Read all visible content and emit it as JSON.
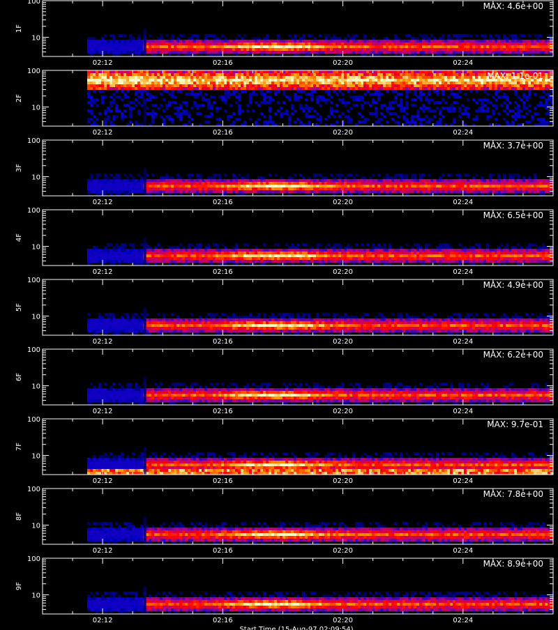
{
  "figure": {
    "footer_label": "Start Time (15-Aug-97 02:09:54)"
  },
  "chart_data": [
    {
      "type": "heatmap",
      "panel": "1F",
      "ylabel": "1F",
      "max_label": "MAX: 4.6e+00",
      "band_style": "normal",
      "peak_time": "02:18",
      "yscale": "log",
      "ylim": [
        3,
        100
      ],
      "yticks": [
        "10",
        "100"
      ],
      "xticks": [
        "02:12",
        "02:16",
        "02:20",
        "02:24"
      ],
      "xlim": [
        "02:10",
        "02:27"
      ]
    },
    {
      "type": "heatmap",
      "panel": "2F",
      "ylabel": "2F",
      "max_label": "MAX: 1.1e-01",
      "band_style": "high-noise",
      "peak_time": "02:13",
      "yscale": "log",
      "ylim": [
        3,
        100
      ],
      "yticks": [
        "10",
        "100"
      ],
      "xticks": [
        "02:12",
        "02:16",
        "02:20",
        "02:24"
      ],
      "xlim": [
        "02:10",
        "02:27"
      ]
    },
    {
      "type": "heatmap",
      "panel": "3F",
      "ylabel": "3F",
      "max_label": "MAX: 3.7e+00",
      "band_style": "normal",
      "peak_time": "02:18",
      "yscale": "log",
      "ylim": [
        3,
        100
      ],
      "yticks": [
        "10",
        "100"
      ],
      "xticks": [
        "02:12",
        "02:16",
        "02:20",
        "02:24"
      ],
      "xlim": [
        "02:10",
        "02:27"
      ]
    },
    {
      "type": "heatmap",
      "panel": "4F",
      "ylabel": "4F",
      "max_label": "MAX: 6.5e+00",
      "band_style": "normal",
      "peak_time": "02:18",
      "yscale": "log",
      "ylim": [
        3,
        100
      ],
      "yticks": [
        "10",
        "100"
      ],
      "xticks": [
        "02:12",
        "02:16",
        "02:20",
        "02:24"
      ],
      "xlim": [
        "02:10",
        "02:27"
      ]
    },
    {
      "type": "heatmap",
      "panel": "5F",
      "ylabel": "5F",
      "max_label": "MAX: 4.9e+00",
      "band_style": "normal",
      "peak_time": "02:18",
      "yscale": "log",
      "ylim": [
        3,
        100
      ],
      "yticks": [
        "10",
        "100"
      ],
      "xticks": [
        "02:12",
        "02:16",
        "02:20",
        "02:24"
      ],
      "xlim": [
        "02:10",
        "02:27"
      ]
    },
    {
      "type": "heatmap",
      "panel": "6F",
      "ylabel": "6F",
      "max_label": "MAX: 6.2e+00",
      "band_style": "normal",
      "peak_time": "02:18",
      "yscale": "log",
      "ylim": [
        3,
        100
      ],
      "yticks": [
        "10",
        "100"
      ],
      "xticks": [
        "02:12",
        "02:16",
        "02:20",
        "02:24"
      ],
      "xlim": [
        "02:10",
        "02:27"
      ]
    },
    {
      "type": "heatmap",
      "panel": "7F",
      "ylabel": "7F",
      "max_label": "MAX: 9.7e-01",
      "band_style": "with-bottom-strip",
      "peak_time": "02:18",
      "yscale": "log",
      "ylim": [
        3,
        100
      ],
      "yticks": [
        "10",
        "100"
      ],
      "xticks": [
        "02:12",
        "02:16",
        "02:20",
        "02:24"
      ],
      "xlim": [
        "02:10",
        "02:27"
      ]
    },
    {
      "type": "heatmap",
      "panel": "8F",
      "ylabel": "8F",
      "max_label": "MAX: 7.8e+00",
      "band_style": "normal",
      "peak_time": "02:18",
      "yscale": "log",
      "ylim": [
        3,
        100
      ],
      "yticks": [
        "10",
        "100"
      ],
      "xticks": [
        "02:12",
        "02:16",
        "02:20",
        "02:24"
      ],
      "xlim": [
        "02:10",
        "02:27"
      ]
    },
    {
      "type": "heatmap",
      "panel": "9F",
      "ylabel": "9F",
      "max_label": "MAX: 8.9e+00",
      "band_style": "normal",
      "peak_time": "02:18",
      "yscale": "log",
      "ylim": [
        3,
        100
      ],
      "yticks": [
        "10",
        "100"
      ],
      "xticks": [
        "02:12",
        "02:16",
        "02:20",
        "02:24"
      ],
      "xlim": [
        "02:10",
        "02:27"
      ]
    }
  ]
}
